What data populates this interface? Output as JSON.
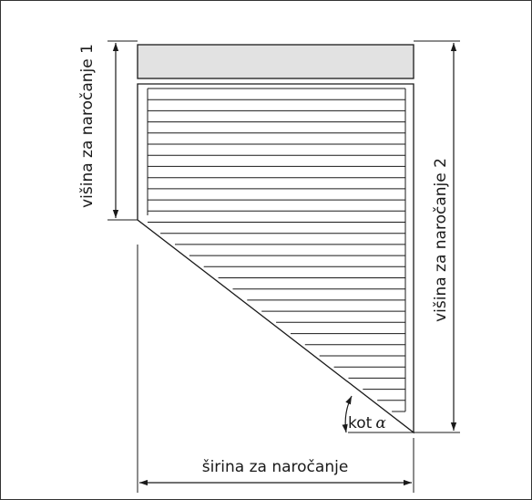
{
  "labels": {
    "height1": "višina za naročanje 1",
    "height2": "višina za naročanje 2",
    "width": "širina za naročanje",
    "angle_word": "kot",
    "angle_symbol": "α"
  },
  "colors": {
    "line": "#1a1a1a",
    "headrail_fill": "#e2e2e2",
    "frame": "#333333"
  },
  "blind": {
    "slat_count": 30
  }
}
